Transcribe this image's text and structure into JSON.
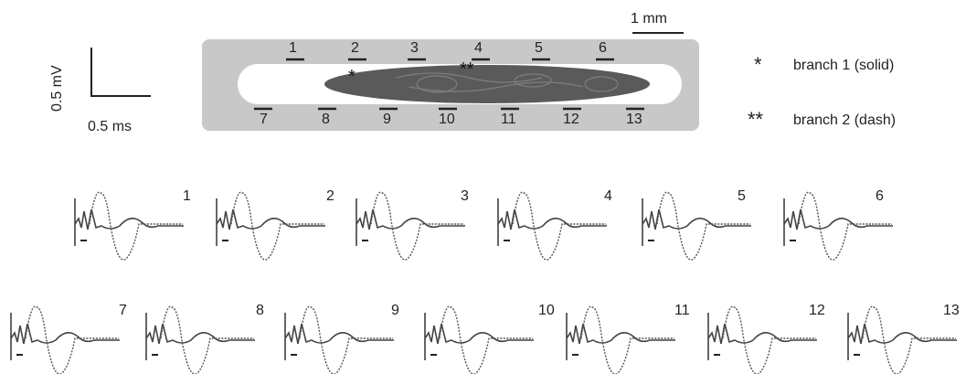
{
  "scale_bar": {
    "vertical_label": "0.5 mV",
    "horizontal_label": "0.5 ms"
  },
  "specimen_scale": "1 mm",
  "electrodes": {
    "top": [
      "1",
      "2",
      "3",
      "4",
      "5",
      "6"
    ],
    "bottom": [
      "7",
      "8",
      "9",
      "10",
      "11",
      "12",
      "13"
    ]
  },
  "legend": [
    {
      "symbol": "*",
      "label": "branch 1 (solid)"
    },
    {
      "symbol": "**",
      "label": "branch 2 (dash)"
    }
  ],
  "traces": [
    "1",
    "2",
    "3",
    "4",
    "5",
    "6",
    "7",
    "8",
    "9",
    "10",
    "11",
    "12",
    "13"
  ],
  "colors": {
    "frame": "#c8c8c8",
    "trace": "#333333",
    "specimen": "#555555"
  }
}
